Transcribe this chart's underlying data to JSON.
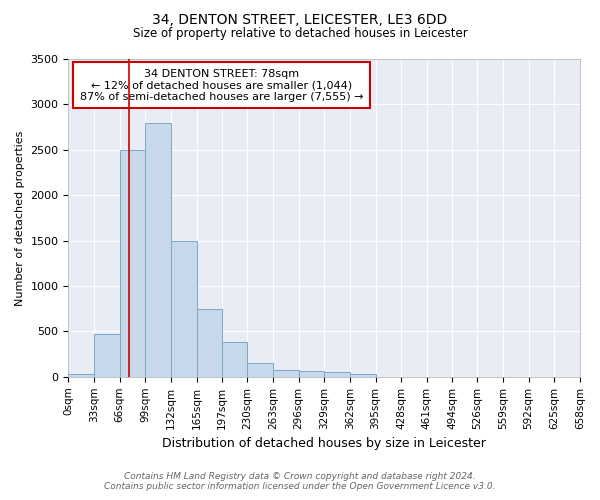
{
  "title1": "34, DENTON STREET, LEICESTER, LE3 6DD",
  "title2": "Size of property relative to detached houses in Leicester",
  "xlabel": "Distribution of detached houses by size in Leicester",
  "ylabel": "Number of detached properties",
  "annotation_line1": "34 DENTON STREET: 78sqm",
  "annotation_line2": "← 12% of detached houses are smaller (1,044)",
  "annotation_line3": "87% of semi-detached houses are larger (7,555) →",
  "property_size": 78,
  "bin_edges": [
    0,
    33,
    66,
    99,
    132,
    165,
    197,
    230,
    263,
    296,
    329,
    362,
    395,
    428,
    461,
    494,
    526,
    559,
    592,
    625,
    658
  ],
  "bar_heights": [
    30,
    470,
    2500,
    2800,
    1500,
    750,
    380,
    150,
    75,
    60,
    50,
    30,
    0,
    0,
    0,
    0,
    0,
    0,
    0,
    0
  ],
  "bar_color": "#c8d8eb",
  "bar_edge_color": "#7aaac8",
  "red_line_color": "#cc0000",
  "annotation_box_color": "#cc0000",
  "background_color": "#e8edf5",
  "ylim": [
    0,
    3500
  ],
  "yticks": [
    0,
    500,
    1000,
    1500,
    2000,
    2500,
    3000,
    3500
  ],
  "footer1": "Contains HM Land Registry data © Crown copyright and database right 2024.",
  "footer2": "Contains public sector information licensed under the Open Government Licence v3.0."
}
